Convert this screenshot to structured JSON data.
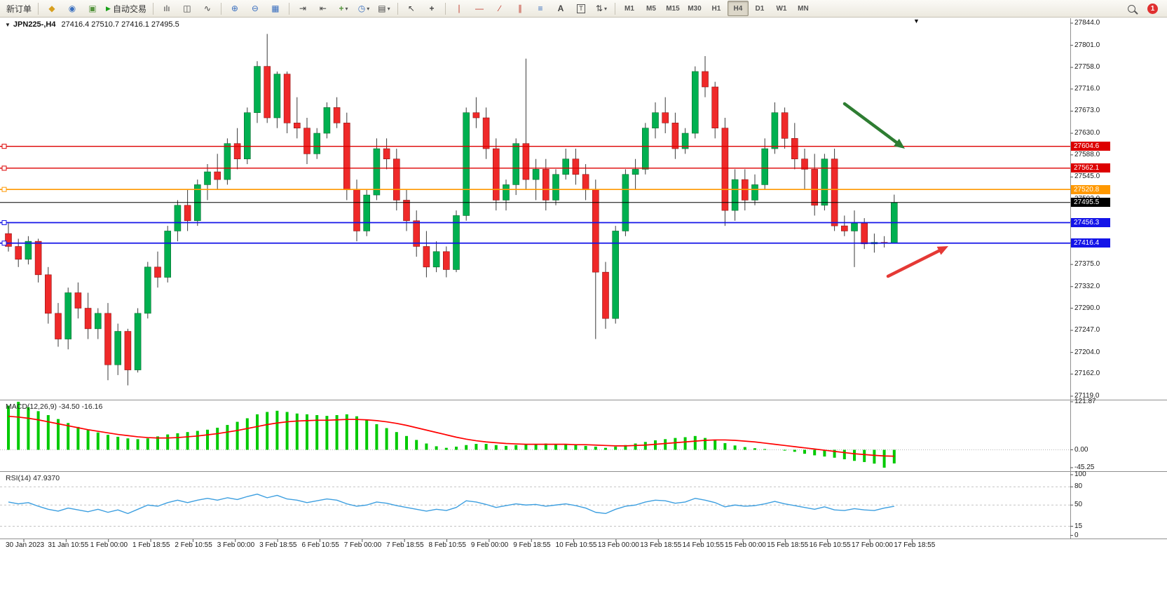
{
  "toolbar": {
    "new_order_label": "新订单",
    "autotrade_label": "自动交易",
    "timeframes": [
      "M1",
      "M5",
      "M15",
      "M30",
      "H1",
      "H4",
      "D1",
      "W1",
      "MN"
    ],
    "active_timeframe": "H4",
    "notification_badge": "1",
    "icons": {
      "market_watch": "◆",
      "navigator": "◉",
      "terminal": "▣",
      "autotrade_play": "▶",
      "bars_chart": "ılı",
      "candles_chart": "◫",
      "line_chart": "∿",
      "zoom_in": "⊕",
      "zoom_out": "⊖",
      "tile_windows": "▦",
      "auto_scroll": "⇥",
      "chart_shift": "⇤",
      "indicators": "+",
      "periods": "◷",
      "templates": "▤",
      "cursor": "↖",
      "crosshair": "+",
      "vertical_line": "∣",
      "horizontal_line": "—",
      "trendline": "∕",
      "channel": "∥",
      "fibonacci": "≡",
      "text": "A",
      "text_label": "T",
      "arrows": "⇅",
      "dropdown": "▾"
    }
  },
  "chart_header": {
    "collapse_icon": "▼",
    "symbol_period": "JPN225-,H4",
    "ohlc": "27416.4 27510.7 27416.1 27495.5",
    "shift_marker": "▼"
  },
  "time_axis": {
    "labels": [
      "30 Jan 2023",
      "31 Jan 10:55",
      "1 Feb 00:00",
      "1 Feb 18:55",
      "2 Feb 10:55",
      "3 Feb 00:00",
      "3 Feb 18:55",
      "6 Feb 10:55",
      "7 Feb 00:00",
      "7 Feb 18:55",
      "8 Feb 10:55",
      "9 Feb 00:00",
      "9 Feb 18:55",
      "10 Feb 10:55",
      "13 Feb 00:00",
      "13 Feb 18:55",
      "14 Feb 10:55",
      "15 Feb 00:00",
      "15 Feb 18:55",
      "16 Feb 10:55",
      "17 Feb 00:00",
      "17 Feb 18:55"
    ]
  },
  "chart_data": [
    {
      "type": "candlestick",
      "title": "JPN225-,H4",
      "y_range": [
        27119.0,
        27844.0
      ],
      "y_ticks": [
        "27844.0",
        "27801.0",
        "27758.0",
        "27716.0",
        "27673.0",
        "27630.0",
        "27588.0",
        "27545.0",
        "27502.0",
        "27459.0",
        "27417.0",
        "27375.0",
        "27332.0",
        "27290.0",
        "27247.0",
        "27204.0",
        "27162.0",
        "27119.0"
      ],
      "colors": {
        "up": "#00b050",
        "down": "#ef2929",
        "wick": "#3a3a3a"
      },
      "candles": [
        [
          27435,
          27455,
          27400,
          27410
        ],
        [
          27410,
          27425,
          27370,
          27385
        ],
        [
          27385,
          27430,
          27375,
          27420
        ],
        [
          27420,
          27425,
          27340,
          27355
        ],
        [
          27355,
          27370,
          27260,
          27280
        ],
        [
          27280,
          27300,
          27215,
          27230
        ],
        [
          27230,
          27330,
          27210,
          27320
        ],
        [
          27320,
          27340,
          27270,
          27290
        ],
        [
          27290,
          27320,
          27230,
          27250
        ],
        [
          27250,
          27290,
          27230,
          27280
        ],
        [
          27280,
          27300,
          27150,
          27180
        ],
        [
          27180,
          27260,
          27160,
          27245
        ],
        [
          27245,
          27250,
          27140,
          27170
        ],
        [
          27170,
          27290,
          27165,
          27280
        ],
        [
          27280,
          27380,
          27270,
          27370
        ],
        [
          27370,
          27400,
          27330,
          27350
        ],
        [
          27350,
          27450,
          27340,
          27440
        ],
        [
          27440,
          27500,
          27420,
          27490
        ],
        [
          27490,
          27520,
          27440,
          27460
        ],
        [
          27460,
          27540,
          27450,
          27530
        ],
        [
          27530,
          27570,
          27500,
          27555
        ],
        [
          27555,
          27590,
          27520,
          27540
        ],
        [
          27540,
          27620,
          27530,
          27610
        ],
        [
          27610,
          27640,
          27560,
          27580
        ],
        [
          27580,
          27680,
          27570,
          27670
        ],
        [
          27670,
          27770,
          27650,
          27760
        ],
        [
          27760,
          27823,
          27650,
          27660
        ],
        [
          27660,
          27750,
          27640,
          27745
        ],
        [
          27745,
          27750,
          27630,
          27650
        ],
        [
          27650,
          27700,
          27620,
          27640
        ],
        [
          27640,
          27660,
          27570,
          27590
        ],
        [
          27590,
          27640,
          27580,
          27630
        ],
        [
          27630,
          27690,
          27620,
          27680
        ],
        [
          27680,
          27700,
          27640,
          27650
        ],
        [
          27650,
          27670,
          27500,
          27520
        ],
        [
          27520,
          27540,
          27420,
          27440
        ],
        [
          27440,
          27520,
          27430,
          27510
        ],
        [
          27510,
          27620,
          27500,
          27600
        ],
        [
          27600,
          27620,
          27560,
          27580
        ],
        [
          27580,
          27600,
          27480,
          27500
        ],
        [
          27500,
          27520,
          27440,
          27460
        ],
        [
          27460,
          27480,
          27390,
          27410
        ],
        [
          27410,
          27440,
          27350,
          27370
        ],
        [
          27370,
          27420,
          27360,
          27400
        ],
        [
          27400,
          27410,
          27350,
          27365
        ],
        [
          27365,
          27480,
          27360,
          27470
        ],
        [
          27470,
          27680,
          27460,
          27670
        ],
        [
          27670,
          27700,
          27640,
          27660
        ],
        [
          27660,
          27680,
          27580,
          27600
        ],
        [
          27600,
          27620,
          27480,
          27500
        ],
        [
          27500,
          27540,
          27480,
          27530
        ],
        [
          27530,
          27620,
          27510,
          27610
        ],
        [
          27610,
          27775,
          27520,
          27540
        ],
        [
          27540,
          27580,
          27500,
          27560
        ],
        [
          27560,
          27580,
          27480,
          27500
        ],
        [
          27500,
          27560,
          27490,
          27550
        ],
        [
          27550,
          27600,
          27540,
          27580
        ],
        [
          27580,
          27600,
          27530,
          27550
        ],
        [
          27550,
          27570,
          27500,
          27520
        ],
        [
          27520,
          27540,
          27230,
          27360
        ],
        [
          27360,
          27380,
          27250,
          27270
        ],
        [
          27270,
          27450,
          27260,
          27440
        ],
        [
          27440,
          27560,
          27430,
          27550
        ],
        [
          27550,
          27580,
          27520,
          27560
        ],
        [
          27560,
          27650,
          27550,
          27640
        ],
        [
          27640,
          27690,
          27620,
          27670
        ],
        [
          27670,
          27700,
          27630,
          27650
        ],
        [
          27650,
          27670,
          27580,
          27600
        ],
        [
          27600,
          27640,
          27590,
          27630
        ],
        [
          27630,
          27760,
          27620,
          27750
        ],
        [
          27750,
          27780,
          27700,
          27720
        ],
        [
          27720,
          27730,
          27620,
          27640
        ],
        [
          27640,
          27660,
          27450,
          27480
        ],
        [
          27480,
          27560,
          27460,
          27540
        ],
        [
          27540,
          27560,
          27480,
          27500
        ],
        [
          27500,
          27550,
          27490,
          27530
        ],
        [
          27530,
          27620,
          27520,
          27600
        ],
        [
          27600,
          27690,
          27590,
          27670
        ],
        [
          27670,
          27680,
          27600,
          27620
        ],
        [
          27620,
          27650,
          27560,
          27580
        ],
        [
          27580,
          27600,
          27520,
          27560
        ],
        [
          27560,
          27590,
          27470,
          27490
        ],
        [
          27490,
          27590,
          27480,
          27580
        ],
        [
          27580,
          27600,
          27440,
          27450
        ],
        [
          27450,
          27470,
          27430,
          27440
        ],
        [
          27440,
          27480,
          27370,
          27455
        ],
        [
          27455,
          27465,
          27405,
          27415
        ],
        [
          27415,
          27435,
          27398,
          27418
        ],
        [
          27418,
          27430,
          27408,
          27416
        ],
        [
          27416.4,
          27510.7,
          27416.1,
          27495.5
        ]
      ],
      "hlines": [
        {
          "price": 27604.6,
          "label": "27604.6",
          "color": "#dd0000",
          "width": 1.4
        },
        {
          "price": 27562.1,
          "label": "27562.1",
          "color": "#dd0000",
          "width": 1.4
        },
        {
          "price": 27520.8,
          "label": "27520.8",
          "color": "#ff9800",
          "width": 1.6
        },
        {
          "price": 27456.3,
          "label": "27456.3",
          "color": "#1414e8",
          "width": 1.8
        },
        {
          "price": 27416.4,
          "label": "27416.4",
          "color": "#1414e8",
          "width": 1.8
        }
      ],
      "current_price": {
        "value": 27495.5,
        "label": "27495.5",
        "color": "#000000"
      },
      "arrows": [
        {
          "name": "down-trend-arrow",
          "color": "#2e7d32",
          "from": [
            1205,
            148
          ],
          "to": [
            1291,
            212
          ]
        },
        {
          "name": "up-support-arrow",
          "color": "#e53935",
          "from": [
            1267,
            394
          ],
          "to": [
            1353,
            351
          ]
        }
      ]
    },
    {
      "type": "bar",
      "label": "MACD(12,26,9) -34.50 -16.16",
      "y_ticks": [
        "121.87",
        "0.00",
        "-45.25"
      ],
      "colors": {
        "histogram": "#00ca00",
        "signal": "#ff0000"
      },
      "values": [
        112,
        121.87,
        108,
        98,
        88,
        78,
        68,
        58,
        50,
        44,
        38,
        33,
        29,
        27,
        29,
        34,
        39,
        42,
        45,
        48,
        51,
        56,
        63,
        71,
        80,
        90,
        96,
        99,
        96,
        92,
        90,
        88,
        86,
        88,
        90,
        85,
        75,
        65,
        55,
        45,
        35,
        25,
        16,
        9,
        5,
        8,
        12,
        15,
        15,
        12,
        10,
        12,
        14,
        15,
        16,
        15,
        14,
        12,
        10,
        8,
        5,
        8,
        12,
        16,
        20,
        24,
        27,
        30,
        32,
        35,
        30,
        24,
        17,
        11,
        7,
        4,
        2,
        0,
        -2,
        -5,
        -10,
        -14,
        -17,
        -20,
        -24,
        -28,
        -31,
        -35,
        -45.25,
        -34.5
      ],
      "signal": [
        85,
        83,
        80,
        76,
        71,
        66,
        61,
        56,
        51,
        47,
        43,
        39,
        36,
        33,
        31,
        30,
        30,
        31,
        33,
        35,
        38,
        41,
        45,
        49,
        54,
        59,
        64,
        68,
        71,
        73,
        74,
        75,
        75,
        76,
        77,
        77,
        76,
        74,
        71,
        67,
        62,
        56,
        50,
        44,
        38,
        32,
        27,
        23,
        20,
        18,
        16,
        15,
        14,
        14,
        14,
        14,
        14,
        13,
        13,
        12,
        11,
        10,
        10,
        11,
        12,
        14,
        16,
        18,
        20,
        22,
        24,
        25,
        25,
        24,
        22,
        20,
        17,
        14,
        11,
        8,
        5,
        2,
        -1,
        -4,
        -7,
        -10,
        -12,
        -14,
        -15.5,
        -16.16
      ]
    },
    {
      "type": "line",
      "label": "RSI(14) 47.9370",
      "y_ticks": [
        "100",
        "80",
        "50",
        "15",
        "0"
      ],
      "levels": [
        80,
        50,
        15
      ],
      "color": "#3d9fe0",
      "values": [
        55,
        52,
        54,
        48,
        43,
        40,
        45,
        42,
        39,
        43,
        38,
        42,
        36,
        43,
        50,
        48,
        54,
        58,
        54,
        58,
        61,
        58,
        62,
        59,
        64,
        68,
        62,
        66,
        60,
        58,
        54,
        57,
        60,
        58,
        52,
        48,
        50,
        55,
        53,
        49,
        46,
        43,
        40,
        43,
        41,
        46,
        57,
        55,
        51,
        46,
        49,
        52,
        50,
        51,
        48,
        50,
        52,
        49,
        45,
        38,
        36,
        43,
        48,
        50,
        55,
        58,
        57,
        53,
        55,
        61,
        58,
        54,
        47,
        50,
        48,
        49,
        52,
        56,
        52,
        49,
        46,
        43,
        47,
        42,
        41,
        44,
        42,
        41,
        45,
        47.94
      ]
    }
  ]
}
